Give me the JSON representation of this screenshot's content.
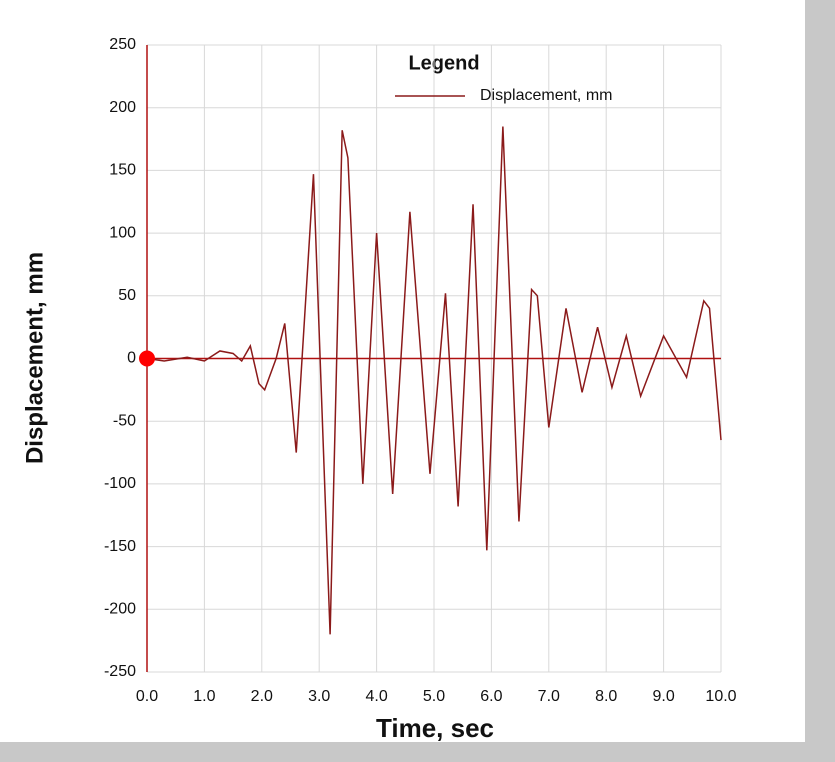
{
  "chart_data": {
    "type": "line",
    "xlabel": "Time,  sec",
    "ylabel": "Displacement, mm",
    "legend_title": "Legend",
    "legend": "top-right",
    "grid": true,
    "xlim": [
      0,
      10
    ],
    "ylim": [
      -250,
      250
    ],
    "xticks": [
      {
        "value": 0,
        "label": "0.0"
      },
      {
        "value": 1,
        "label": "1.0"
      },
      {
        "value": 2,
        "label": "2.0"
      },
      {
        "value": 3,
        "label": "3.0"
      },
      {
        "value": 4,
        "label": "4.0"
      },
      {
        "value": 5,
        "label": "5.0"
      },
      {
        "value": 6,
        "label": "6.0"
      },
      {
        "value": 7,
        "label": "7.0"
      },
      {
        "value": 8,
        "label": "8.0"
      },
      {
        "value": 9,
        "label": "9.0"
      },
      {
        "value": 10,
        "label": "10.0"
      }
    ],
    "yticks": [
      -250,
      -200,
      -150,
      -100,
      -50,
      0,
      50,
      100,
      150,
      200,
      250
    ],
    "x": [
      0,
      0.3,
      0.7,
      1.0,
      1.27,
      1.5,
      1.65,
      1.8,
      1.95,
      2.05,
      2.25,
      2.4,
      2.6,
      2.9,
      3.19,
      3.4,
      3.5,
      3.76,
      4.0,
      4.28,
      4.58,
      4.93,
      5.2,
      5.42,
      5.68,
      5.92,
      6.2,
      6.48,
      6.7,
      6.8,
      7.0,
      7.3,
      7.58,
      7.85,
      8.1,
      8.35,
      8.6,
      9.0,
      9.4,
      9.7,
      9.8,
      10.0
    ],
    "series": [
      {
        "name": "Displacement, mm",
        "color": "#8b1a1a",
        "values": [
          0,
          -2,
          1,
          -2,
          6,
          4,
          -2,
          10,
          -20,
          -25,
          0,
          28,
          -75,
          147,
          -220,
          182,
          160,
          -100,
          100,
          -108,
          117,
          -92,
          52,
          -118,
          123,
          -153,
          185,
          -130,
          55,
          50,
          -55,
          40,
          -27,
          25,
          -23,
          18,
          -30,
          18,
          -15,
          46,
          40,
          -65
        ]
      }
    ],
    "marker_color": "#ff0000"
  }
}
